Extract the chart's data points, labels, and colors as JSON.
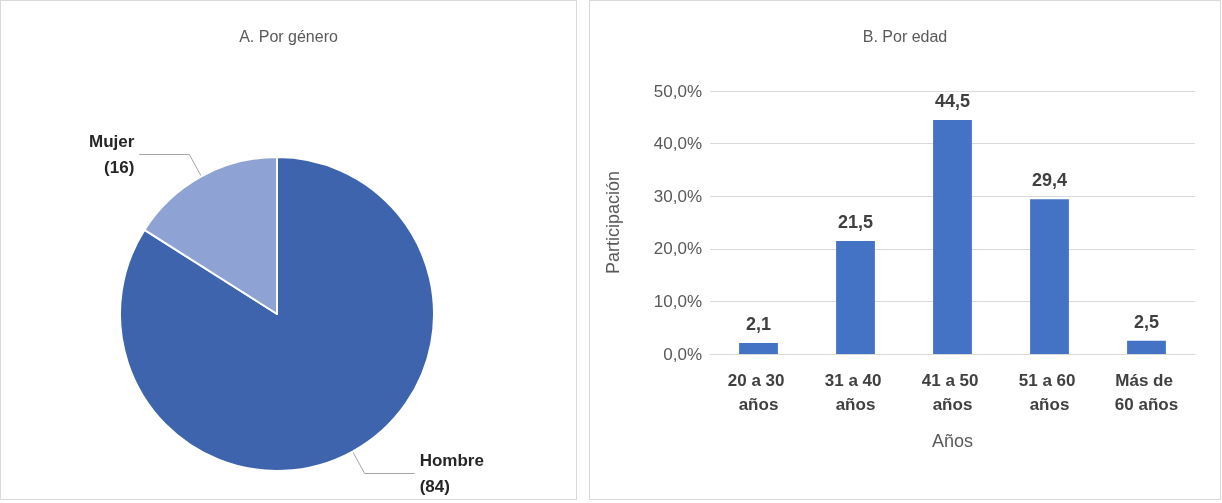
{
  "chart_data": [
    {
      "type": "pie",
      "title": "A. Por género",
      "categories": [
        "Hombre",
        "Mujer"
      ],
      "values": [
        84,
        16
      ],
      "colors": [
        "#3d64ad",
        "#8fa2d4"
      ],
      "value_labels": [
        "(84)",
        "(16)"
      ]
    },
    {
      "type": "bar",
      "title": "B. Por edad",
      "categories": [
        "20 a 30 años",
        "31 a 40 años",
        "41 a 50 años",
        "51 a 60 años",
        "Más de 60 años"
      ],
      "values": [
        2.1,
        21.5,
        44.5,
        29.4,
        2.5
      ],
      "value_labels": [
        "2,1",
        "21,5",
        "44,5",
        "29,4",
        "2,5"
      ],
      "color": "#4472c4",
      "xlabel": "Años",
      "ylabel": "Participación",
      "ylim": [
        0,
        50
      ],
      "yticks": [
        {
          "value": 0,
          "label": "0,0%"
        },
        {
          "value": 10,
          "label": "10,0%"
        },
        {
          "value": 20,
          "label": "20,0%"
        },
        {
          "value": 30,
          "label": "30,0%"
        },
        {
          "value": 40,
          "label": "40,0%"
        },
        {
          "value": 50,
          "label": "50,0%"
        }
      ],
      "grid": "y"
    }
  ]
}
